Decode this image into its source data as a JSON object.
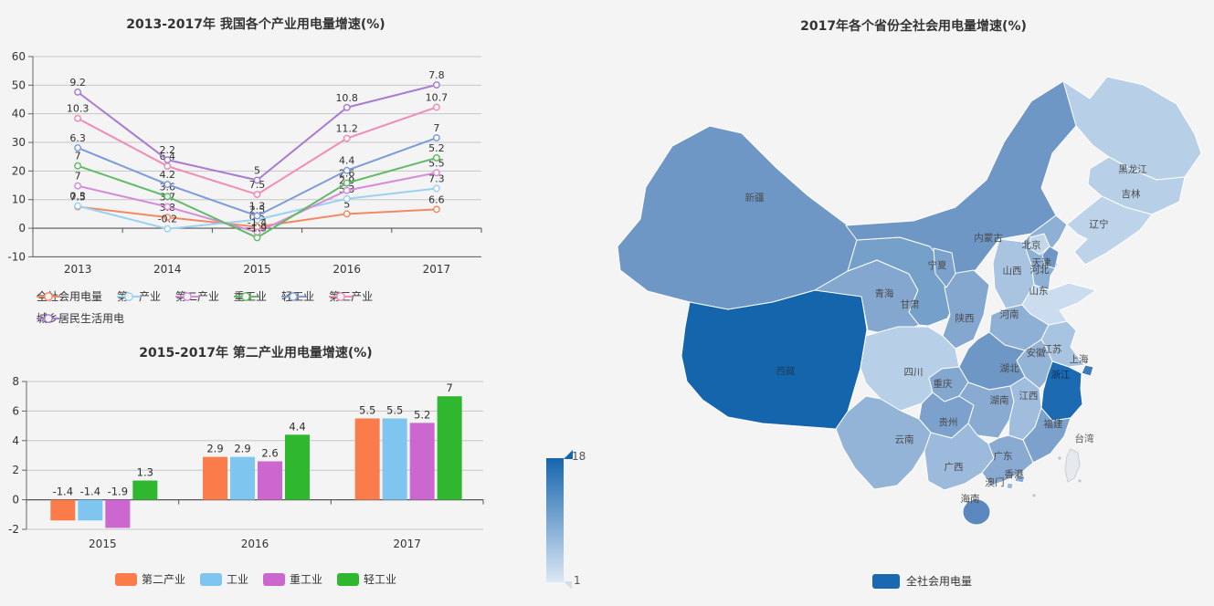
{
  "page": {
    "background": "#f4f4f5"
  },
  "chart_data": [
    {
      "id": "industry-electricity-line",
      "type": "line",
      "title": "2013-2017年 我国各个产业用电量增速(%)",
      "categories": [
        "2013",
        "2014",
        "2015",
        "2016",
        "2017"
      ],
      "ylim": [
        -10,
        60
      ],
      "yticks": [
        60,
        50,
        40,
        30,
        20,
        10,
        0,
        -10
      ],
      "grid": true,
      "stacked": true,
      "legend_position": "bottom-left",
      "series": [
        {
          "name": "全社会用电量",
          "color": "#f08a63",
          "values": [
            7.5,
            3.8,
            0.5,
            5,
            6.6
          ]
        },
        {
          "name": "第一产业",
          "color": "#9ad2f2",
          "values": [
            0.3,
            -0.2,
            2.5,
            5.3,
            7.3
          ]
        },
        {
          "name": "第二产业",
          "color": "#d78ad9",
          "values": [
            7,
            3.7,
            -1.4,
            2.9,
            5.5
          ]
        },
        {
          "name": "重工业",
          "color": "#62ba66",
          "values": [
            7,
            3.6,
            -1.9,
            2.6,
            5.2
          ]
        },
        {
          "name": "轻工业",
          "color": "#7d9bd9",
          "values": [
            6.3,
            4.2,
            1.3,
            4.4,
            7
          ]
        },
        {
          "name": "第三产业",
          "color": "#f08cb5",
          "values": [
            10.3,
            6.4,
            7.5,
            11.2,
            10.7
          ]
        },
        {
          "name": "城乡居民生活用电",
          "color": "#a87cd0",
          "values": [
            9.2,
            2.2,
            5,
            10.8,
            7.8
          ]
        }
      ]
    },
    {
      "id": "secondary-industry-bar",
      "type": "bar",
      "title": "2015-2017年 第二产业用电量增速(%)",
      "categories": [
        "2015",
        "2016",
        "2017"
      ],
      "ylim": [
        -2,
        8
      ],
      "yticks": [
        8,
        6,
        4,
        2,
        0,
        -2
      ],
      "grid": true,
      "legend_position": "bottom-center",
      "series": [
        {
          "name": "第二产业",
          "color": "#fa7c4a",
          "values": [
            -1.4,
            2.9,
            5.5
          ]
        },
        {
          "name": "工业",
          "color": "#7ec5f0",
          "values": [
            -1.4,
            2.9,
            5.5
          ]
        },
        {
          "name": "重工业",
          "color": "#cc67cf",
          "values": [
            -1.9,
            2.6,
            5.2
          ]
        },
        {
          "name": "轻工业",
          "color": "#2fb82f",
          "values": [
            1.3,
            4.4,
            7
          ]
        }
      ]
    },
    {
      "id": "province-electricity-map",
      "type": "heatmap",
      "title": "2017年各个省份全社会用电量增速(%)",
      "legend": {
        "label": "全社会用电量",
        "color": "#1a68b2"
      },
      "visual_scale": {
        "max": "18",
        "min": "1",
        "max_color": "#1565ad",
        "min_color": "#dce8f5"
      },
      "provinces": [
        {
          "name": "新疆",
          "color": "#6f97c5"
        },
        {
          "name": "西藏",
          "color": "#1565ad",
          "label_color": "#1c3f63"
        },
        {
          "name": "内蒙古",
          "color": "#6f97c5"
        },
        {
          "name": "青海",
          "color": "#84a7d0"
        },
        {
          "name": "甘肃",
          "color": "#74a0ca"
        },
        {
          "name": "宁夏",
          "color": "#7ca1cc"
        },
        {
          "name": "陕西",
          "color": "#84a7d0"
        },
        {
          "name": "山西",
          "color": "#a9c4e1"
        },
        {
          "name": "河北",
          "color": "#8fb0d5"
        },
        {
          "name": "北京",
          "color": "#c3d7eb"
        },
        {
          "name": "天津",
          "color": "#6f97c5"
        },
        {
          "name": "山东",
          "color": "#cadcee"
        },
        {
          "name": "河南",
          "color": "#8fb0d5"
        },
        {
          "name": "江苏",
          "color": "#a9c4e1"
        },
        {
          "name": "安徽",
          "color": "#93b3d7"
        },
        {
          "name": "上海",
          "color": "#3d7ab8"
        },
        {
          "name": "浙江",
          "color": "#1b6ab2",
          "label_color": "#0e2f52"
        },
        {
          "name": "湖北",
          "color": "#6f97c5"
        },
        {
          "name": "重庆",
          "color": "#84a7d0"
        },
        {
          "name": "四川",
          "color": "#b7cfe7"
        },
        {
          "name": "贵州",
          "color": "#7ca1cc"
        },
        {
          "name": "湖南",
          "color": "#89abd2"
        },
        {
          "name": "江西",
          "color": "#a0bddd"
        },
        {
          "name": "福建",
          "color": "#7ca1cc"
        },
        {
          "name": "云南",
          "color": "#93b3d7"
        },
        {
          "name": "广西",
          "color": "#9cbadb"
        },
        {
          "name": "广东",
          "color": "#89abd2"
        },
        {
          "name": "香港",
          "color": "#89abd2"
        },
        {
          "name": "澳门",
          "color": "#9cbadb"
        },
        {
          "name": "海南",
          "color": "#5b89bf"
        },
        {
          "name": "台湾",
          "color": "#e6e9ee",
          "label_color": "#555555"
        },
        {
          "name": "黑龙江",
          "color": "#b7cfe7"
        },
        {
          "name": "吉林",
          "color": "#b7cfe7"
        },
        {
          "name": "辽宁",
          "color": "#bdd3e9"
        }
      ]
    }
  ]
}
